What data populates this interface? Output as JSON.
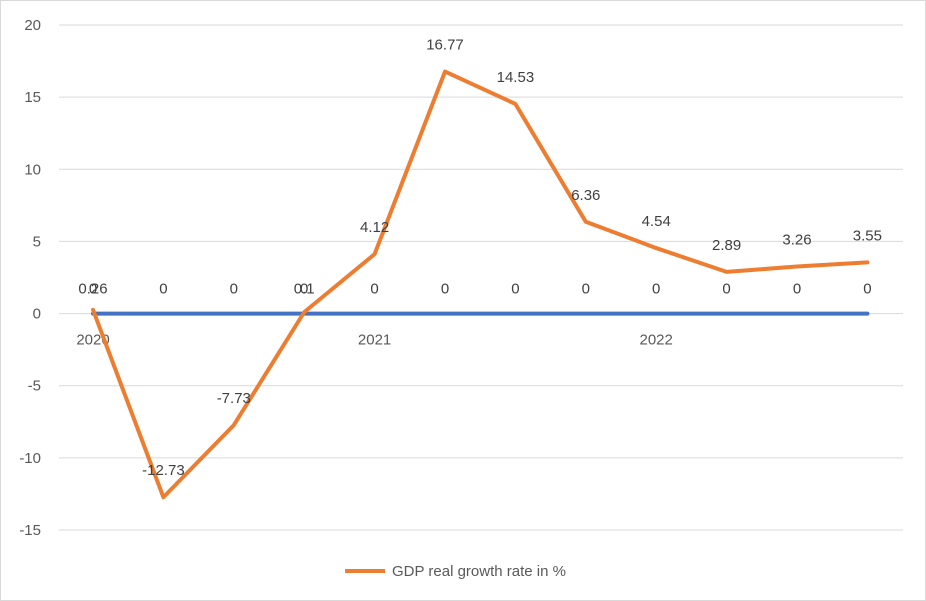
{
  "chart_data": {
    "type": "line",
    "title": "",
    "xlabel": "",
    "ylabel": "",
    "ylim": [
      -15,
      20
    ],
    "yticks": [
      20,
      15,
      10,
      5,
      0,
      -5,
      -10,
      -15
    ],
    "grid": true,
    "legend_position": "bottom",
    "year_labels": [
      {
        "label": "2020",
        "index": 0
      },
      {
        "label": "2021",
        "index": 4
      },
      {
        "label": "2022",
        "index": 8
      }
    ],
    "series": [
      {
        "name": "GDP real growth rate in %",
        "color": "#ED7D31",
        "values": [
          0.26,
          -12.73,
          -7.73,
          0.1,
          4.12,
          16.77,
          14.53,
          6.36,
          4.54,
          2.89,
          3.26,
          3.55
        ],
        "labels": [
          "0.26",
          "-12.73",
          "-7.73",
          "0.1",
          "4.12",
          "16.77",
          "14.53",
          "6.36",
          "4.54",
          "2.89",
          "3.26",
          "3.55"
        ],
        "in_legend": true
      },
      {
        "name": "",
        "color": "#4472C4",
        "values": [
          0,
          0,
          0,
          0,
          0,
          0,
          0,
          0,
          0,
          0,
          0,
          0
        ],
        "labels": [
          "0",
          "0",
          "0",
          "0",
          "0",
          "0",
          "0",
          "0",
          "0",
          "0",
          "0",
          "0"
        ],
        "in_legend": false
      }
    ]
  }
}
